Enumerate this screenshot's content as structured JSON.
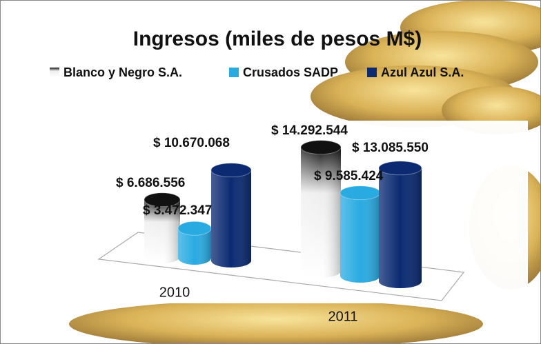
{
  "chart_data": {
    "type": "bar3d",
    "title": "Ingresos (miles de pesos M$)",
    "categories": [
      "2010",
      "2011"
    ],
    "series": [
      {
        "name": "Blanco y Negro S.A.",
        "color": "#000000",
        "values": [
          6686556,
          14292544
        ],
        "value_labels": [
          "$ 6.686.556",
          "$ 14.292.544"
        ]
      },
      {
        "name": "Crusados SADP",
        "color": "#29abe2",
        "values": [
          3472347,
          9585424
        ],
        "value_labels": [
          "$ 3.472.347",
          "$ 9.585.424"
        ]
      },
      {
        "name": "Azul Azul S.A.",
        "color": "#0b2a72",
        "values": [
          10670068,
          13085550
        ],
        "value_labels": [
          "$ 10.670.068",
          "$ 13.085.550"
        ]
      }
    ],
    "legend": "top"
  }
}
